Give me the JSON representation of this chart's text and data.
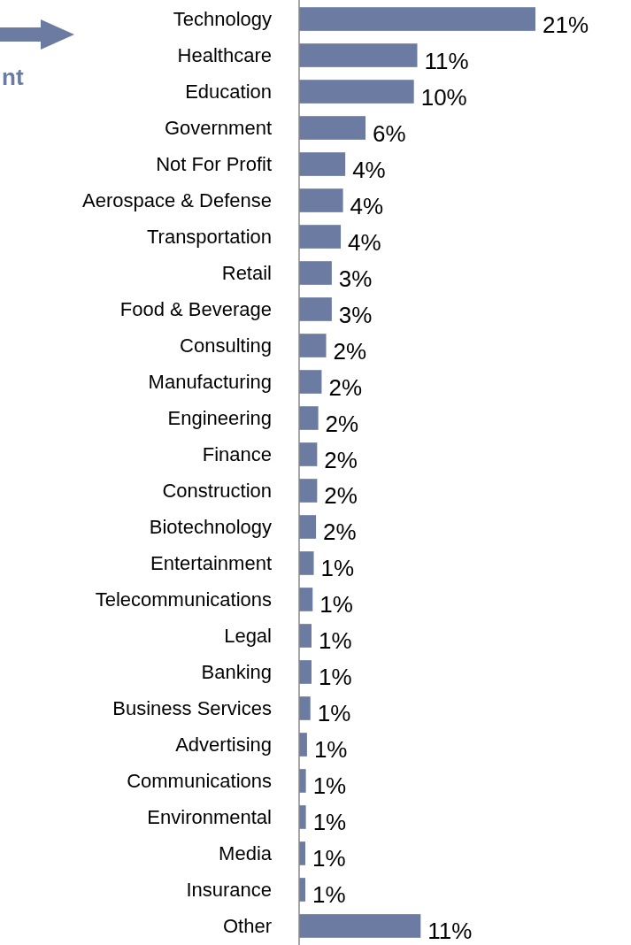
{
  "chart_data": {
    "type": "bar",
    "orientation": "horizontal",
    "categories": [
      "Technology",
      "Healthcare",
      "Education",
      "Government",
      "Not For Profit",
      "Aerospace & Defense",
      "Transportation",
      "Retail",
      "Food & Beverage",
      "Consulting",
      "Manufacturing",
      "Engineering",
      "Finance",
      "Construction",
      "Biotechnology",
      "Entertainment",
      "Telecommunications",
      "Legal",
      "Banking",
      "Business Services",
      "Advertising",
      "Communications",
      "Environmental",
      "Media",
      "Insurance",
      "Other"
    ],
    "values": [
      21,
      10.5,
      10.2,
      5.9,
      4.1,
      3.9,
      3.7,
      2.9,
      2.9,
      2.4,
      2.0,
      1.7,
      1.6,
      1.6,
      1.5,
      1.3,
      1.2,
      1.1,
      1.1,
      1.0,
      0.7,
      0.6,
      0.6,
      0.55,
      0.55,
      10.8
    ],
    "value_labels": [
      "21%",
      "11%",
      "10%",
      "6%",
      "4%",
      "4%",
      "4%",
      "3%",
      "3%",
      "2%",
      "2%",
      "2%",
      "2%",
      "2%",
      "2%",
      "1%",
      "1%",
      "1%",
      "1%",
      "1%",
      "1%",
      "1%",
      "1%",
      "1%",
      "1%",
      "11%"
    ],
    "color": "#6b7ba1",
    "annotations": [
      "nt"
    ]
  }
}
